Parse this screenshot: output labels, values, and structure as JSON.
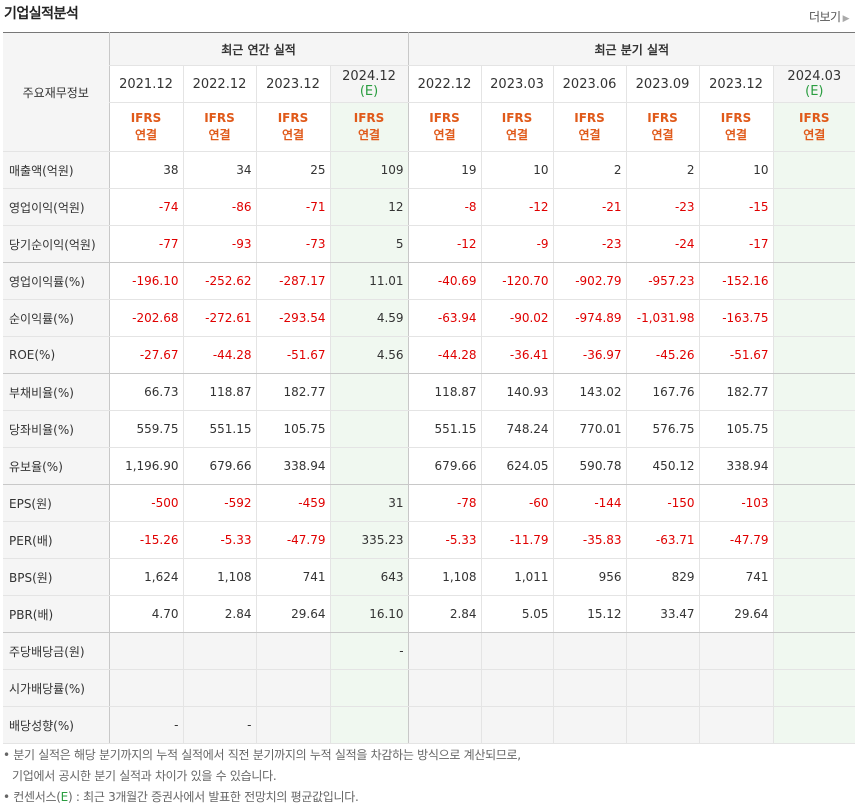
{
  "header": {
    "title": "기업실적분석",
    "more_label": "더보기"
  },
  "table": {
    "corner": "주요재무정보",
    "annual_group": "최근 연간 실적",
    "quarter_group": "최근 분기 실적",
    "annual_periods": [
      {
        "label": "2021.12"
      },
      {
        "label": "2022.12"
      },
      {
        "label": "2023.12"
      },
      {
        "label": "2024.12",
        "estimate": "(E)"
      }
    ],
    "quarter_periods": [
      {
        "label": "2022.12"
      },
      {
        "label": "2023.03"
      },
      {
        "label": "2023.06"
      },
      {
        "label": "2023.09"
      },
      {
        "label": "2023.12"
      },
      {
        "label": "2024.03",
        "estimate": "(E)"
      }
    ],
    "ifrs_top": "IFRS",
    "ifrs_bottom": "연결",
    "rows": [
      {
        "name": "매출액(억원)",
        "values": [
          "38",
          "34",
          "25",
          "109",
          "19",
          "10",
          "2",
          "2",
          "10",
          ""
        ]
      },
      {
        "name": "영업이익(억원)",
        "values": [
          "-74",
          "-86",
          "-71",
          "12",
          "-8",
          "-12",
          "-21",
          "-23",
          "-15",
          ""
        ]
      },
      {
        "name": "당기순이익(억원)",
        "values": [
          "-77",
          "-93",
          "-73",
          "5",
          "-12",
          "-9",
          "-23",
          "-24",
          "-17",
          ""
        ]
      },
      {
        "name": "영업이익률(%)",
        "values": [
          "-196.10",
          "-252.62",
          "-287.17",
          "11.01",
          "-40.69",
          "-120.70",
          "-902.79",
          "-957.23",
          "-152.16",
          ""
        ]
      },
      {
        "name": "순이익률(%)",
        "values": [
          "-202.68",
          "-272.61",
          "-293.54",
          "4.59",
          "-63.94",
          "-90.02",
          "-974.89",
          "-1,031.98",
          "-163.75",
          ""
        ]
      },
      {
        "name": "ROE(%)",
        "values": [
          "-27.67",
          "-44.28",
          "-51.67",
          "4.56",
          "-44.28",
          "-36.41",
          "-36.97",
          "-45.26",
          "-51.67",
          ""
        ]
      },
      {
        "name": "부채비율(%)",
        "values": [
          "66.73",
          "118.87",
          "182.77",
          "",
          "118.87",
          "140.93",
          "143.02",
          "167.76",
          "182.77",
          ""
        ]
      },
      {
        "name": "당좌비율(%)",
        "values": [
          "559.75",
          "551.15",
          "105.75",
          "",
          "551.15",
          "748.24",
          "770.01",
          "576.75",
          "105.75",
          ""
        ]
      },
      {
        "name": "유보율(%)",
        "values": [
          "1,196.90",
          "679.66",
          "338.94",
          "",
          "679.66",
          "624.05",
          "590.78",
          "450.12",
          "338.94",
          ""
        ]
      },
      {
        "name": "EPS(원)",
        "values": [
          "-500",
          "-592",
          "-459",
          "31",
          "-78",
          "-60",
          "-144",
          "-150",
          "-103",
          ""
        ]
      },
      {
        "name": "PER(배)",
        "values": [
          "-15.26",
          "-5.33",
          "-47.79",
          "335.23",
          "-5.33",
          "-11.79",
          "-35.83",
          "-63.71",
          "-47.79",
          ""
        ]
      },
      {
        "name": "BPS(원)",
        "values": [
          "1,624",
          "1,108",
          "741",
          "643",
          "1,108",
          "1,011",
          "956",
          "829",
          "741",
          ""
        ]
      },
      {
        "name": "PBR(배)",
        "values": [
          "4.70",
          "2.84",
          "29.64",
          "16.10",
          "2.84",
          "5.05",
          "15.12",
          "33.47",
          "29.64",
          ""
        ]
      },
      {
        "name": "주당배당금(원)",
        "values": [
          "",
          "",
          "",
          "-",
          "",
          "",
          "",
          "",
          "",
          ""
        ]
      },
      {
        "name": "시가배당률(%)",
        "values": [
          "",
          "",
          "",
          "",
          "",
          "",
          "",
          "",
          "",
          ""
        ]
      },
      {
        "name": "배당성향(%)",
        "values": [
          "-",
          "-",
          "",
          "",
          "",
          "",
          "",
          "",
          "",
          ""
        ]
      }
    ]
  },
  "notes": {
    "line1": "분기 실적은 해당 분기까지의 누적 실적에서 직전 분기까지의 누적 실적을 차감하는 방식으로 계산되므로,",
    "line2": "기업에서 공시한 분기 실적과 차이가 있을 수 있습니다.",
    "line3_prefix": "컨센서스(",
    "line3_e": "E",
    "line3_suffix": ") : 최근 3개월간 증권사에서 발표한 전망치의 평균값입니다."
  },
  "colors": {
    "negative": "#e00000",
    "ifrs": "#e05a1a",
    "estimate": "#2a9d40",
    "estimate_bg": "#f0f8f0"
  }
}
